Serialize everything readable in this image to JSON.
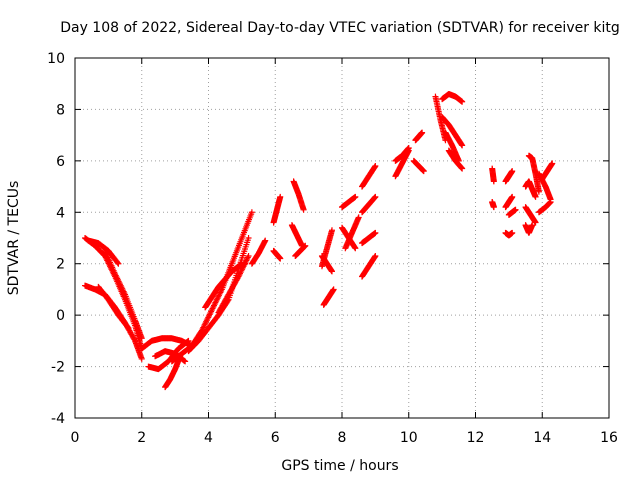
{
  "chart_data": {
    "type": "scatter",
    "title": "Day 108 of 2022, Sidereal Day-to-day VTEC variation (SDTVAR) for receiver kitg",
    "xlabel": "GPS time / hours",
    "ylabel": "SDTVAR / TECUs",
    "xlim": [
      0,
      16
    ],
    "ylim": [
      -4,
      10
    ],
    "xticks": [
      "0",
      "2",
      "4",
      "6",
      "8",
      "10",
      "12",
      "14",
      "16"
    ],
    "yticks": [
      "-4",
      "-2",
      "0",
      "2",
      "4",
      "6",
      "8",
      "10"
    ],
    "grid": true,
    "marker": "plus",
    "color": "#ff0000",
    "segments": [
      {
        "x": [
          0.3,
          0.6,
          0.9,
          1.2,
          1.5,
          1.8,
          2.0
        ],
        "y": [
          3.0,
          2.7,
          2.3,
          1.5,
          0.6,
          -0.4,
          -1.3
        ]
      },
      {
        "x": [
          0.3,
          0.6,
          0.9,
          1.2,
          1.5,
          1.8,
          2.0
        ],
        "y": [
          1.15,
          1.0,
          0.8,
          0.3,
          -0.3,
          -1.0,
          -1.7
        ]
      },
      {
        "x": [
          0.9,
          1.2,
          1.5,
          1.8,
          2.0
        ],
        "y": [
          2.5,
          1.6,
          0.8,
          -0.2,
          -0.9
        ]
      },
      {
        "x": [
          0.7,
          1.0,
          1.3,
          1.6
        ],
        "y": [
          1.1,
          0.6,
          0.0,
          -0.5
        ]
      },
      {
        "x": [
          0.4,
          0.7,
          1.0,
          1.3
        ],
        "y": [
          2.9,
          2.8,
          2.5,
          2.0
        ]
      },
      {
        "x": [
          2.0,
          2.3,
          2.6,
          2.9,
          3.2,
          3.5
        ],
        "y": [
          -1.3,
          -1.0,
          -0.9,
          -0.9,
          -1.0,
          -1.2
        ]
      },
      {
        "x": [
          2.2,
          2.5,
          2.8,
          3.1,
          3.4
        ],
        "y": [
          -2.0,
          -2.1,
          -1.8,
          -1.3,
          -1.0
        ]
      },
      {
        "x": [
          2.7,
          2.85,
          3.0,
          3.15
        ],
        "y": [
          -2.8,
          -2.5,
          -2.1,
          -1.6
        ]
      },
      {
        "x": [
          2.4,
          2.7,
          3.0,
          3.3
        ],
        "y": [
          -1.6,
          -1.4,
          -1.5,
          -1.8
        ]
      },
      {
        "x": [
          2.9,
          3.2,
          3.5,
          3.8,
          4.1,
          4.4,
          4.7,
          5.0,
          5.3
        ],
        "y": [
          -1.8,
          -1.5,
          -1.2,
          -0.6,
          0.2,
          1.0,
          2.0,
          3.0,
          4.0
        ]
      },
      {
        "x": [
          3.4,
          3.7,
          4.0,
          4.3,
          4.6,
          4.9,
          5.2
        ],
        "y": [
          -1.4,
          -1.0,
          -0.5,
          0.0,
          0.6,
          1.8,
          3.0
        ]
      },
      {
        "x": [
          3.9,
          4.1,
          4.3,
          4.5,
          4.7,
          4.9,
          5.1
        ],
        "y": [
          0.3,
          0.7,
          1.1,
          1.4,
          1.7,
          1.9,
          2.0
        ]
      },
      {
        "x": [
          4.3,
          4.6,
          4.9,
          5.2
        ],
        "y": [
          0.1,
          0.8,
          1.5,
          2.3
        ]
      },
      {
        "x": [
          5.3,
          5.5,
          5.7
        ],
        "y": [
          2.0,
          2.4,
          2.9
        ]
      },
      {
        "x": [
          5.95,
          6.05,
          6.15
        ],
        "y": [
          3.6,
          4.1,
          4.6
        ]
      },
      {
        "x": [
          5.95,
          6.05,
          6.15
        ],
        "y": [
          2.5,
          2.35,
          2.2
        ]
      },
      {
        "x": [
          6.55,
          6.7,
          6.85
        ],
        "y": [
          5.2,
          4.7,
          4.1
        ]
      },
      {
        "x": [
          6.5,
          6.65,
          6.8
        ],
        "y": [
          3.5,
          3.1,
          2.7
        ]
      },
      {
        "x": [
          6.6,
          6.75,
          6.9
        ],
        "y": [
          2.3,
          2.5,
          2.7
        ]
      },
      {
        "x": [
          7.4,
          7.55,
          7.7
        ],
        "y": [
          1.9,
          2.6,
          3.3
        ]
      },
      {
        "x": [
          7.4,
          7.55,
          7.7
        ],
        "y": [
          2.3,
          2.0,
          1.7
        ]
      },
      {
        "x": [
          7.45,
          7.6,
          7.75
        ],
        "y": [
          0.4,
          0.7,
          1.0
        ]
      },
      {
        "x": [
          8.0,
          8.2,
          8.4
        ],
        "y": [
          4.2,
          4.4,
          4.6
        ]
      },
      {
        "x": [
          8.0,
          8.2,
          8.4
        ],
        "y": [
          3.4,
          3.0,
          2.6
        ]
      },
      {
        "x": [
          8.1,
          8.3,
          8.5
        ],
        "y": [
          2.6,
          3.2,
          3.8
        ]
      },
      {
        "x": [
          8.6,
          8.8,
          9.0
        ],
        "y": [
          5.0,
          5.4,
          5.8
        ]
      },
      {
        "x": [
          8.6,
          8.8,
          9.0
        ],
        "y": [
          4.0,
          4.3,
          4.6
        ]
      },
      {
        "x": [
          8.6,
          8.8,
          9.0
        ],
        "y": [
          2.8,
          3.0,
          3.2
        ]
      },
      {
        "x": [
          8.6,
          8.8,
          9.0
        ],
        "y": [
          1.5,
          1.9,
          2.3
        ]
      },
      {
        "x": [
          9.6,
          9.8,
          10.0
        ],
        "y": [
          5.4,
          5.9,
          6.4
        ]
      },
      {
        "x": [
          9.6,
          9.8,
          10.0
        ],
        "y": [
          6.0,
          6.2,
          6.5
        ]
      },
      {
        "x": [
          10.2,
          10.3,
          10.4
        ],
        "y": [
          6.8,
          6.95,
          7.1
        ]
      },
      {
        "x": [
          10.15,
          10.3,
          10.45
        ],
        "y": [
          6.0,
          5.8,
          5.6
        ]
      },
      {
        "x": [
          10.8,
          10.95,
          11.1
        ],
        "y": [
          8.5,
          7.6,
          6.8
        ]
      },
      {
        "x": [
          11.0,
          11.2,
          11.4,
          11.6
        ],
        "y": [
          8.4,
          8.6,
          8.5,
          8.3
        ]
      },
      {
        "x": [
          11.0,
          11.2,
          11.4,
          11.6
        ],
        "y": [
          7.7,
          7.4,
          7.0,
          6.6
        ]
      },
      {
        "x": [
          11.2,
          11.4,
          11.6
        ],
        "y": [
          6.4,
          6.0,
          5.7
        ]
      },
      {
        "x": [
          11.1,
          11.3,
          11.5
        ],
        "y": [
          7.1,
          6.6,
          6.0
        ]
      },
      {
        "x": [
          12.5,
          12.55
        ],
        "y": [
          5.7,
          5.2
        ]
      },
      {
        "x": [
          12.5,
          12.55
        ],
        "y": [
          4.4,
          4.2
        ]
      },
      {
        "x": [
          12.9,
          13.0,
          13.1
        ],
        "y": [
          5.2,
          5.4,
          5.6
        ]
      },
      {
        "x": [
          12.9,
          13.0,
          13.1
        ],
        "y": [
          4.2,
          4.4,
          4.6
        ]
      },
      {
        "x": [
          12.9,
          13.0,
          13.1
        ],
        "y": [
          3.2,
          3.1,
          3.2
        ]
      },
      {
        "x": [
          13.0,
          13.1,
          13.2
        ],
        "y": [
          3.9,
          4.0,
          4.1
        ]
      },
      {
        "x": [
          13.5,
          13.6,
          13.7,
          13.8
        ],
        "y": [
          5.0,
          5.2,
          4.9,
          4.6
        ]
      },
      {
        "x": [
          13.6,
          13.7,
          13.8,
          13.9
        ],
        "y": [
          6.2,
          6.1,
          5.5,
          4.8
        ]
      },
      {
        "x": [
          13.5,
          13.6,
          13.7
        ],
        "y": [
          3.5,
          3.2,
          3.5
        ]
      },
      {
        "x": [
          13.5,
          13.65,
          13.8
        ],
        "y": [
          4.2,
          3.9,
          3.6
        ]
      },
      {
        "x": [
          13.9,
          14.1,
          14.25
        ],
        "y": [
          5.5,
          5.0,
          4.5
        ]
      },
      {
        "x": [
          13.9,
          14.1,
          14.25
        ],
        "y": [
          4.0,
          4.2,
          4.4
        ]
      },
      {
        "x": [
          14.0,
          14.15,
          14.3
        ],
        "y": [
          5.3,
          5.6,
          5.9
        ]
      }
    ]
  }
}
